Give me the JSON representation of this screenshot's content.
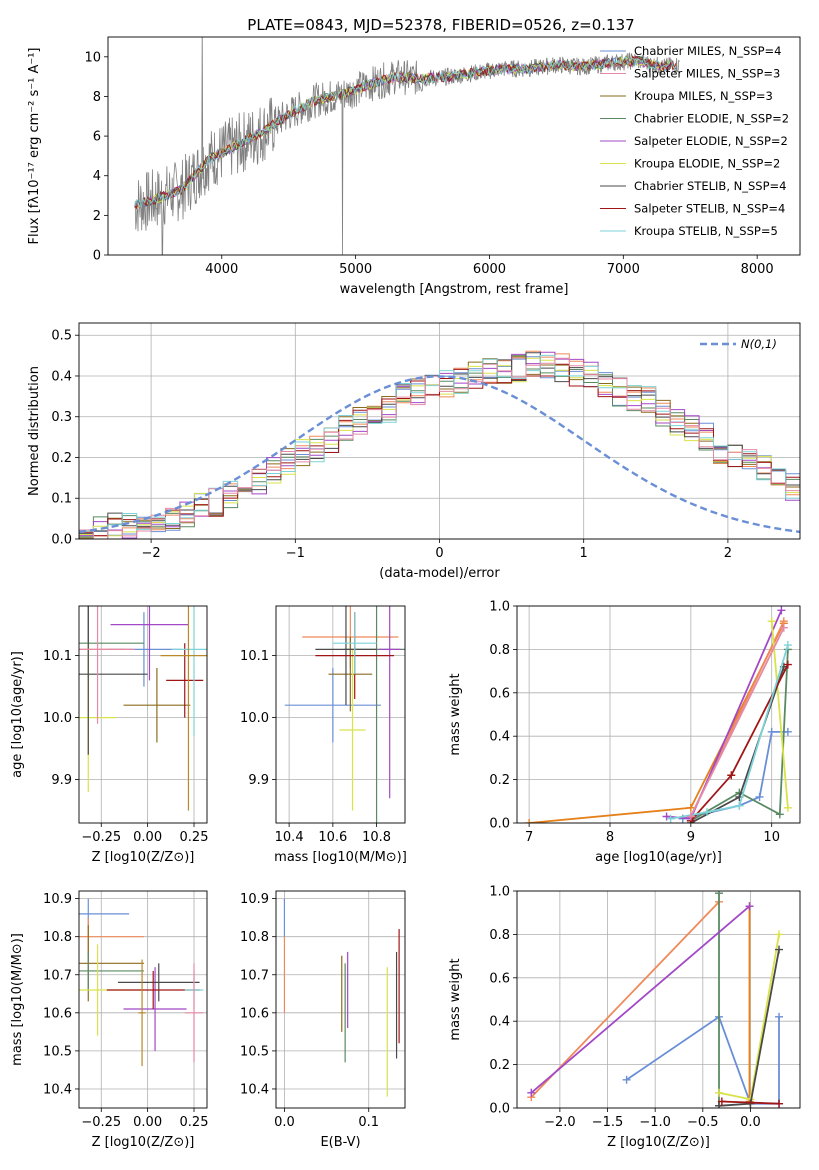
{
  "title": "PLATE=0843, MJD=52378, FIBERID=0526, z=0.137",
  "colors": [
    "#6a8fd6",
    "#ef8a5a",
    "#8b6b1e",
    "#5a8a62",
    "#a348c6",
    "#d9e24a",
    "#4a4a4a",
    "#a01616",
    "#7ed3d8",
    "#e58aa6",
    "#b88a2a",
    "#3a3a3a",
    "#e6801a"
  ],
  "chart_data": [
    {
      "id": "spectrum",
      "type": "line",
      "xlabel": "wavelength [Angstrom, rest frame]",
      "ylabel": "Flux [fλ10⁻¹⁷ erg cm⁻² s⁻¹ A⁻¹]",
      "xlim": [
        3150,
        8320
      ],
      "ylim": [
        0,
        11
      ],
      "xticks": [
        "4000",
        "5000",
        "6000",
        "7000",
        "8000"
      ],
      "xtick_values": [
        4000,
        5000,
        6000,
        7000,
        8000
      ],
      "yticks": [
        "0",
        "2",
        "4",
        "6",
        "8",
        "10"
      ],
      "ytick_values": [
        0,
        2,
        4,
        6,
        8,
        10
      ],
      "grid": false,
      "legend": [
        "Chabrier MILES, N_SSP=4",
        "Salpeter MILES, N_SSP=3",
        "Kroupa MILES, N_SSP=3",
        "Chabrier ELODIE, N_SSP=2",
        "Salpeter ELODIE, N_SSP=2",
        "Kroupa ELODIE, N_SSP=2",
        "Chabrier STELIB, N_SSP=4",
        "Salpeter STELIB, N_SSP=4",
        "Kroupa STELIB, N_SSP=5"
      ],
      "legend_placement": "right",
      "data_continuum": {
        "x": [
          3350,
          3500,
          3700,
          3900,
          4100,
          4300,
          4500,
          4700,
          4900,
          5100,
          5300,
          5500,
          5700,
          5900,
          6100,
          6300,
          6500,
          6700,
          6900,
          7100,
          7300,
          7400
        ],
        "y": [
          2.5,
          2.8,
          3.3,
          4.8,
          5.5,
          6.2,
          7.1,
          7.8,
          8.1,
          8.6,
          9.0,
          8.9,
          9.0,
          9.2,
          9.4,
          9.4,
          9.6,
          9.5,
          9.7,
          9.8,
          9.5,
          9.6
        ]
      }
    },
    {
      "id": "residual-histogram",
      "type": "histogram",
      "xlabel": "(data-model)/error",
      "ylabel": "Normed distribution",
      "xlim": [
        -2.5,
        2.5
      ],
      "ylim": [
        0,
        0.53
      ],
      "xticks": [
        "−2",
        "−1",
        "0",
        "1",
        "2"
      ],
      "xtick_values": [
        -2,
        -1,
        0,
        1,
        2
      ],
      "yticks": [
        "0.0",
        "0.1",
        "0.2",
        "0.3",
        "0.4",
        "0.5"
      ],
      "ytick_values": [
        0,
        0.1,
        0.2,
        0.3,
        0.4,
        0.5
      ],
      "grid": true,
      "legend": [
        "N(0,1)"
      ],
      "legend_placement": "top-right",
      "bin_edges_start": -2.5,
      "bin_width": 0.1,
      "hist_values": [
        0.02,
        0.02,
        0.03,
        0.03,
        0.04,
        0.05,
        0.05,
        0.06,
        0.08,
        0.09,
        0.11,
        0.13,
        0.14,
        0.17,
        0.19,
        0.21,
        0.22,
        0.24,
        0.27,
        0.29,
        0.3,
        0.32,
        0.35,
        0.36,
        0.38,
        0.38,
        0.39,
        0.4,
        0.41,
        0.41,
        0.42,
        0.43,
        0.43,
        0.42,
        0.41,
        0.4,
        0.38,
        0.36,
        0.35,
        0.34,
        0.31,
        0.29,
        0.27,
        0.25,
        0.22,
        0.21,
        0.19,
        0.17,
        0.15,
        0.13,
        0.11
      ]
    },
    {
      "id": "age-vs-Z",
      "type": "errorbar",
      "xlabel": "Z [log10(Z/Z⊙)]",
      "ylabel": "age  [log10(age/yr)]",
      "xlim": [
        -0.37,
        0.32
      ],
      "ylim": [
        9.83,
        10.18
      ],
      "xticks": [
        "−0.25",
        "0.00",
        "0.25"
      ],
      "xtick_values": [
        -0.25,
        0,
        0.25
      ],
      "yticks": [
        "9.9",
        "10.0",
        "10.1"
      ],
      "ytick_values": [
        9.9,
        10.0,
        10.1
      ],
      "points": [
        {
          "x": -0.02,
          "y": 10.11,
          "xerr": 0.2,
          "yerr": 0.06
        },
        {
          "x": -0.32,
          "y": 10.11,
          "xerr": 0.2,
          "yerr": 0.17
        },
        {
          "x": 0.05,
          "y": 10.02,
          "xerr": 0.18,
          "yerr": 0.06
        },
        {
          "x": -0.32,
          "y": 10.12,
          "xerr": 0.3,
          "yerr": 0.06
        },
        {
          "x": 0.01,
          "y": 10.15,
          "xerr": 0.21,
          "yerr": 0.09
        },
        {
          "x": -0.32,
          "y": 10.0,
          "xerr": 0.15,
          "yerr": 0.12
        },
        {
          "x": -0.32,
          "y": 10.07,
          "xerr": 0.32,
          "yerr": 0.13
        },
        {
          "x": 0.2,
          "y": 10.06,
          "xerr": 0.1,
          "yerr": 0.06
        },
        {
          "x": 0.25,
          "y": 10.11,
          "xerr": 0.12,
          "yerr": 0.14
        },
        {
          "x": -0.27,
          "y": 10.11,
          "xerr": 0.2,
          "yerr": 0.12
        },
        {
          "x": 0.22,
          "y": 10.1,
          "xerr": 0.15,
          "yerr": 0.25
        }
      ]
    },
    {
      "id": "age-vs-mass",
      "type": "errorbar",
      "xlabel": "mass [log10(M/M⊙)]",
      "ylabel": "",
      "xlim": [
        10.34,
        10.93
      ],
      "ylim": [
        9.83,
        10.18
      ],
      "xticks": [
        "10.4",
        "10.6",
        "10.8"
      ],
      "xtick_values": [
        10.4,
        10.6,
        10.8
      ],
      "yticks": [
        "9.9",
        "10.0",
        "10.1"
      ],
      "ytick_values": [
        9.9,
        10.0,
        10.1
      ],
      "points": [
        {
          "x": 10.6,
          "y": 10.02,
          "xerr": 0.22,
          "yerr": 0.06
        },
        {
          "x": 10.68,
          "y": 10.13,
          "xerr": 0.22,
          "yerr": 0.05
        },
        {
          "x": 10.68,
          "y": 10.07,
          "xerr": 0.1,
          "yerr": 0.06
        },
        {
          "x": 10.8,
          "y": 10.11,
          "xerr": 0.15,
          "yerr": 0.3
        },
        {
          "x": 10.86,
          "y": 10.11,
          "xerr": 0.05,
          "yerr": 0.24
        },
        {
          "x": 10.69,
          "y": 9.98,
          "xerr": 0.06,
          "yerr": 0.13
        },
        {
          "x": 10.66,
          "y": 10.11,
          "xerr": 0.14,
          "yerr": 0.09
        },
        {
          "x": 10.7,
          "y": 10.1,
          "xerr": 0.18,
          "yerr": 0.07
        },
        {
          "x": 10.7,
          "y": 10.12,
          "xerr": 0.1,
          "yerr": 0.05
        }
      ]
    },
    {
      "id": "mass-weight-vs-age",
      "type": "line",
      "xlabel": "age  [log10(age/yr)]",
      "ylabel": "mass weight",
      "xlim": [
        6.85,
        10.35
      ],
      "ylim": [
        0,
        1
      ],
      "xticks": [
        "7",
        "8",
        "9",
        "10"
      ],
      "xtick_values": [
        7,
        8,
        9,
        10
      ],
      "yticks": [
        "0.0",
        "0.2",
        "0.4",
        "0.6",
        "0.8",
        "1.0"
      ],
      "ytick_values": [
        0,
        0.2,
        0.4,
        0.6,
        0.8,
        1.0
      ],
      "grid": true,
      "series": [
        {
          "x": [
            8.9,
            9.6,
            9.85,
            10.0,
            10.2
          ],
          "y": [
            0.02,
            0.08,
            0.12,
            0.42,
            0.42
          ]
        },
        {
          "x": [
            7.0,
            9.0,
            10.15
          ],
          "y": [
            0.0,
            0.07,
            0.92
          ]
        },
        {
          "x": [
            9.0,
            10.15
          ],
          "y": [
            0.03,
            0.93
          ]
        },
        {
          "x": [
            9.0,
            9.6,
            10.1,
            10.2
          ],
          "y": [
            0.01,
            0.14,
            0.04,
            0.8
          ]
        },
        {
          "x": [
            8.7,
            9.0,
            10.12
          ],
          "y": [
            0.03,
            0.02,
            0.98
          ]
        },
        {
          "x": [
            10.0,
            10.2
          ],
          "y": [
            0.93,
            0.07
          ]
        },
        {
          "x": [
            9.0,
            9.6,
            10.15
          ],
          "y": [
            0.0,
            0.12,
            0.72
          ]
        },
        {
          "x": [
            9.0,
            9.5,
            10.2
          ],
          "y": [
            0.01,
            0.22,
            0.73
          ]
        },
        {
          "x": [
            8.75,
            9.2,
            9.6,
            10.2
          ],
          "y": [
            0.02,
            0.05,
            0.08,
            0.82
          ]
        },
        {
          "x": [
            9.0,
            10.15
          ],
          "y": [
            0.03,
            0.9
          ]
        }
      ]
    },
    {
      "id": "mass-vs-Z",
      "type": "errorbar",
      "xlabel": "Z [log10(Z/Z⊙)]",
      "ylabel": "mass [log10(M/M⊙)]",
      "xlim": [
        -0.37,
        0.32
      ],
      "ylim": [
        10.35,
        10.92
      ],
      "xticks": [
        "−0.25",
        "0.00",
        "0.25"
      ],
      "xtick_values": [
        -0.25,
        0,
        0.25
      ],
      "yticks": [
        "10.4",
        "10.5",
        "10.6",
        "10.7",
        "10.8",
        "10.9"
      ],
      "ytick_values": [
        10.4,
        10.5,
        10.6,
        10.7,
        10.8,
        10.9
      ],
      "points": [
        {
          "x": -0.32,
          "y": 10.86,
          "xerr": 0.22,
          "yerr": 0.04
        },
        {
          "x": -0.32,
          "y": 10.8,
          "xerr": 0.3,
          "yerr": 0.05
        },
        {
          "x": -0.32,
          "y": 10.73,
          "xerr": 0.3,
          "yerr": 0.1
        },
        {
          "x": -0.32,
          "y": 10.71,
          "xerr": 0.3,
          "yerr": 0.05
        },
        {
          "x": 0.04,
          "y": 10.61,
          "xerr": 0.17,
          "yerr": 0.11
        },
        {
          "x": -0.27,
          "y": 10.66,
          "xerr": 0.25,
          "yerr": 0.12
        },
        {
          "x": 0.06,
          "y": 10.68,
          "xerr": 0.22,
          "yerr": 0.05
        },
        {
          "x": 0.03,
          "y": 10.66,
          "xerr": 0.25,
          "yerr": 0.05
        },
        {
          "x": 0.25,
          "y": 10.66,
          "xerr": 0.05,
          "yerr": 0.05
        },
        {
          "x": 0.25,
          "y": 10.6,
          "xerr": 0.05,
          "yerr": 0.13
        },
        {
          "x": -0.03,
          "y": 10.6,
          "xerr": 0.02,
          "yerr": 0.14
        }
      ]
    },
    {
      "id": "mass-vs-ebv",
      "type": "errorbar",
      "xlabel": "E(B-V)",
      "ylabel": "",
      "xlim": [
        -0.01,
        0.143
      ],
      "ylim": [
        10.35,
        10.92
      ],
      "xticks": [
        "0.0",
        "0.1"
      ],
      "xtick_values": [
        0,
        0.1
      ],
      "yticks": [
        "10.4",
        "10.5",
        "10.6",
        "10.7",
        "10.8",
        "10.9"
      ],
      "ytick_values": [
        10.4,
        10.5,
        10.6,
        10.7,
        10.8,
        10.9
      ],
      "points": [
        {
          "x": 0.0,
          "y": 10.85,
          "yerr": 0.05
        },
        {
          "x": 0.0,
          "y": 10.7,
          "yerr": 0.1
        },
        {
          "x": 0.068,
          "y": 10.65,
          "yerr": 0.1
        },
        {
          "x": 0.072,
          "y": 10.6,
          "yerr": 0.13
        },
        {
          "x": 0.075,
          "y": 10.66,
          "yerr": 0.1
        },
        {
          "x": 0.122,
          "y": 10.55,
          "yerr": 0.17
        },
        {
          "x": 0.133,
          "y": 10.62,
          "yerr": 0.14
        },
        {
          "x": 0.136,
          "y": 10.67,
          "yerr": 0.15
        }
      ]
    },
    {
      "id": "mass-weight-vs-Z",
      "type": "line",
      "xlabel": "Z [log10(Z/Z⊙)]",
      "ylabel": "mass weight",
      "xlim": [
        -2.45,
        0.52
      ],
      "ylim": [
        0,
        1
      ],
      "xticks": [
        "−2.0",
        "−1.5",
        "−1.0",
        "−0.5",
        "0.0"
      ],
      "xtick_values": [
        -2,
        -1.5,
        -1,
        -0.5,
        0
      ],
      "yticks": [
        "0.0",
        "0.2",
        "0.4",
        "0.6",
        "0.8",
        "1.0"
      ],
      "ytick_values": [
        0,
        0.2,
        0.4,
        0.6,
        0.8,
        1.0
      ],
      "grid": true,
      "series": [
        {
          "x": [
            -1.3,
            -0.33,
            0.0,
            0.3,
            0.3
          ],
          "y": [
            0.13,
            0.42,
            0.02,
            0.02,
            0.42
          ]
        },
        {
          "x": [
            -0.01,
            -0.01
          ],
          "y": [
            0.03,
            0.93
          ]
        },
        {
          "x": [
            -2.3,
            -0.33
          ],
          "y": [
            0.05,
            0.95
          ]
        },
        {
          "x": [
            -0.33,
            -0.33
          ],
          "y": [
            0.01,
            0.99
          ]
        },
        {
          "x": [
            -2.3,
            -0.01
          ],
          "y": [
            0.07,
            0.93
          ]
        },
        {
          "x": [
            -0.33,
            0.0,
            0.3
          ],
          "y": [
            0.07,
            0.04,
            0.8
          ]
        },
        {
          "x": [
            -0.33,
            0.0,
            0.3
          ],
          "y": [
            0.01,
            0.02,
            0.73
          ]
        },
        {
          "x": [
            -0.3,
            0.3
          ],
          "y": [
            0.03,
            0.02
          ]
        }
      ]
    }
  ]
}
